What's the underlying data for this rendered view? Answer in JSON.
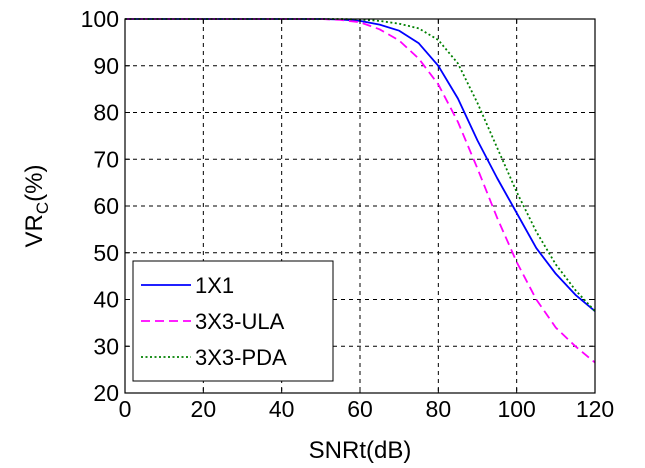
{
  "chart_data": {
    "type": "line",
    "xlabel": "SNRt(dB)",
    "ylabel_main": "VR",
    "ylabel_sub": "C",
    "ylabel_tail": "(%)",
    "xlim": [
      0,
      120
    ],
    "ylim": [
      20,
      100
    ],
    "xticks": [
      0,
      20,
      40,
      60,
      80,
      100,
      120
    ],
    "yticks": [
      20,
      30,
      40,
      50,
      60,
      70,
      80,
      90,
      100
    ],
    "grid": true,
    "legend_position": "bottom-left",
    "series": [
      {
        "name": "1X1",
        "color": "#0000ff",
        "dash": "solid",
        "x": [
          0,
          50,
          55,
          60,
          65,
          70,
          75,
          80,
          85,
          90,
          95,
          100,
          105,
          110,
          115,
          120
        ],
        "y": [
          100,
          100,
          99.9,
          99.6,
          98.8,
          97.5,
          94.8,
          90,
          83,
          74,
          66,
          58.5,
          51,
          45.5,
          41,
          37.5
        ]
      },
      {
        "name": "3X3-ULA",
        "color": "#ff00ff",
        "dash": "dashed",
        "x": [
          0,
          50,
          55,
          60,
          65,
          70,
          75,
          80,
          85,
          90,
          95,
          100,
          105,
          110,
          115,
          120
        ],
        "y": [
          100,
          100,
          99.8,
          99.3,
          97.8,
          95.4,
          91.5,
          86,
          78,
          68,
          57.5,
          48,
          40,
          34,
          30,
          26.5
        ]
      },
      {
        "name": "3X3-PDA",
        "color": "#008000",
        "dash": "dotted",
        "x": [
          0,
          50,
          55,
          60,
          65,
          70,
          75,
          80,
          85,
          90,
          95,
          100,
          105,
          110,
          115,
          120
        ],
        "y": [
          100,
          100,
          100,
          99.9,
          99.6,
          99,
          98,
          95.5,
          90.5,
          82,
          72.5,
          63,
          54.5,
          47.5,
          42,
          37.5
        ]
      }
    ]
  }
}
